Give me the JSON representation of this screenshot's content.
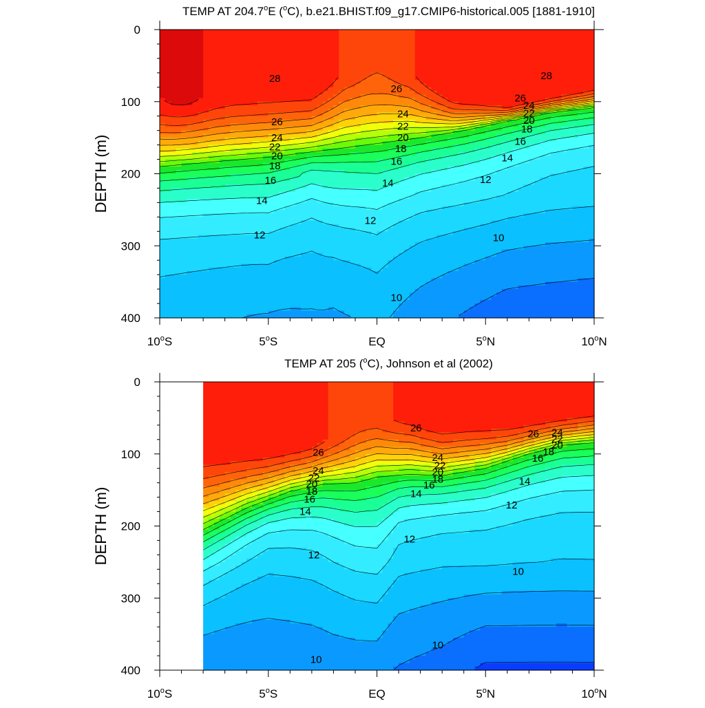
{
  "colors": {
    "background": "#ffffff",
    "contour_line": "#000000",
    "palette_note": "rainbow colormap from dark blue (cold) to dark red (warm)"
  },
  "chart_data": [
    {
      "type": "heatmap",
      "subtype": "filled-contour depth section",
      "title": "TEMP AT 204.7ºE (ºC), b.e21.BHIST.f09_g17.CMIP6-historical.005 [1881-1910]",
      "title_parts": {
        "pre": "TEMP AT 204.7",
        "sup1": "o",
        "mid": "E (",
        "sup2": "o",
        "post": "C), b.e21.BHIST.f09_g17.CMIP6-historical.005 [1881-1910]"
      },
      "ylabel": "DEPTH (m)",
      "xlabel": "",
      "xlim": [
        -10,
        10
      ],
      "ylim": [
        0,
        400
      ],
      "y_inverted": true,
      "data_x_range": [
        -10,
        10
      ],
      "x_ticks": [
        {
          "value": -10,
          "num": "10",
          "hemi": "S"
        },
        {
          "value": -5,
          "num": "5",
          "hemi": "S"
        },
        {
          "value": 0,
          "num": "EQ",
          "hemi": ""
        },
        {
          "value": 5,
          "num": "5",
          "hemi": "N"
        },
        {
          "value": 10,
          "num": "10",
          "hemi": "N"
        }
      ],
      "y_ticks": [
        0,
        100,
        200,
        300,
        400
      ],
      "contour_levels_degC": [
        9,
        10,
        11,
        12,
        13,
        14,
        15,
        16,
        17,
        18,
        19,
        20,
        21,
        22,
        23,
        24,
        25,
        26,
        27,
        28,
        29
      ],
      "contour_labels": [
        {
          "value": "28",
          "x": -4.7,
          "y": 68
        },
        {
          "value": "26",
          "x": -4.6,
          "y": 128
        },
        {
          "value": "24",
          "x": -4.6,
          "y": 150
        },
        {
          "value": "22",
          "x": -4.7,
          "y": 163
        },
        {
          "value": "20",
          "x": -4.6,
          "y": 175
        },
        {
          "value": "18",
          "x": -4.7,
          "y": 189
        },
        {
          "value": "16",
          "x": -4.9,
          "y": 209
        },
        {
          "value": "14",
          "x": -5.3,
          "y": 237
        },
        {
          "value": "12",
          "x": -5.4,
          "y": 285
        },
        {
          "value": "26",
          "x": 0.9,
          "y": 82
        },
        {
          "value": "24",
          "x": 1.2,
          "y": 117
        },
        {
          "value": "22",
          "x": 1.2,
          "y": 134
        },
        {
          "value": "20",
          "x": 1.2,
          "y": 150
        },
        {
          "value": "18",
          "x": 1.1,
          "y": 165
        },
        {
          "value": "16",
          "x": 0.9,
          "y": 183
        },
        {
          "value": "14",
          "x": 0.5,
          "y": 213
        },
        {
          "value": "12",
          "x": -0.3,
          "y": 265
        },
        {
          "value": "10",
          "x": 0.9,
          "y": 372
        },
        {
          "value": "28",
          "x": 7.8,
          "y": 64
        },
        {
          "value": "26",
          "x": 6.6,
          "y": 95
        },
        {
          "value": "24",
          "x": 7.0,
          "y": 105
        },
        {
          "value": "22",
          "x": 7.0,
          "y": 116
        },
        {
          "value": "20",
          "x": 7.0,
          "y": 126
        },
        {
          "value": "18",
          "x": 6.9,
          "y": 138
        },
        {
          "value": "16",
          "x": 6.6,
          "y": 155
        },
        {
          "value": "14",
          "x": 6.0,
          "y": 178
        },
        {
          "value": "12",
          "x": 5.0,
          "y": 208
        },
        {
          "value": "10",
          "x": 5.6,
          "y": 289
        }
      ]
    },
    {
      "type": "heatmap",
      "subtype": "filled-contour depth section",
      "title": "TEMP AT 205 (ºC), Johnson et al (2002)",
      "title_parts": {
        "pre": "TEMP AT 205 (",
        "sup1": "o",
        "mid": "C), Johnson et al (2002)",
        "sup2": "",
        "post": ""
      },
      "ylabel": "DEPTH (m)",
      "xlabel": "",
      "xlim": [
        -10,
        10
      ],
      "ylim": [
        0,
        400
      ],
      "y_inverted": true,
      "data_x_range": [
        -8,
        10
      ],
      "x_ticks": [
        {
          "value": -10,
          "num": "10",
          "hemi": "S"
        },
        {
          "value": -5,
          "num": "5",
          "hemi": "S"
        },
        {
          "value": 0,
          "num": "EQ",
          "hemi": ""
        },
        {
          "value": 5,
          "num": "5",
          "hemi": "N"
        },
        {
          "value": 10,
          "num": "10",
          "hemi": "N"
        }
      ],
      "y_ticks": [
        0,
        100,
        200,
        300,
        400
      ],
      "contour_levels_degC": [
        9,
        10,
        11,
        12,
        13,
        14,
        15,
        16,
        17,
        18,
        19,
        20,
        21,
        22,
        23,
        24,
        25,
        26,
        27,
        28,
        29
      ],
      "contour_labels": [
        {
          "value": "26",
          "x": -2.7,
          "y": 98
        },
        {
          "value": "24",
          "x": -2.7,
          "y": 123
        },
        {
          "value": "22",
          "x": -2.9,
          "y": 133
        },
        {
          "value": "20",
          "x": -3.0,
          "y": 142
        },
        {
          "value": "18",
          "x": -3.0,
          "y": 152
        },
        {
          "value": "16",
          "x": -3.1,
          "y": 163
        },
        {
          "value": "14",
          "x": -3.3,
          "y": 180
        },
        {
          "value": "12",
          "x": -2.9,
          "y": 240
        },
        {
          "value": "10",
          "x": -2.8,
          "y": 385
        },
        {
          "value": "26",
          "x": 1.8,
          "y": 64
        },
        {
          "value": "24",
          "x": 2.8,
          "y": 105
        },
        {
          "value": "22",
          "x": 2.9,
          "y": 116
        },
        {
          "value": "20",
          "x": 2.8,
          "y": 125
        },
        {
          "value": "18",
          "x": 2.8,
          "y": 135
        },
        {
          "value": "16",
          "x": 2.4,
          "y": 143
        },
        {
          "value": "14",
          "x": 1.8,
          "y": 155
        },
        {
          "value": "12",
          "x": 1.5,
          "y": 218
        },
        {
          "value": "10",
          "x": 2.8,
          "y": 365
        },
        {
          "value": "26",
          "x": 7.2,
          "y": 72
        },
        {
          "value": "24",
          "x": 8.3,
          "y": 70
        },
        {
          "value": "22",
          "x": 8.3,
          "y": 79
        },
        {
          "value": "20",
          "x": 8.3,
          "y": 88
        },
        {
          "value": "18",
          "x": 7.9,
          "y": 97
        },
        {
          "value": "16",
          "x": 7.4,
          "y": 106
        },
        {
          "value": "14",
          "x": 6.8,
          "y": 138
        },
        {
          "value": "12",
          "x": 6.2,
          "y": 171
        },
        {
          "value": "10",
          "x": 6.5,
          "y": 263
        }
      ]
    }
  ],
  "panels": [
    {
      "label_index": 0
    },
    {
      "label_index": 1
    }
  ]
}
